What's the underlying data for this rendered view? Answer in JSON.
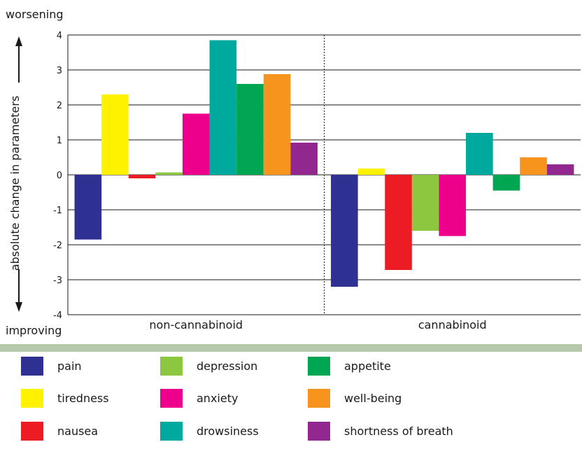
{
  "chart_data": {
    "type": "bar",
    "title": "",
    "ylabel": "absolute change in parameters",
    "ylabel_top": "worsening",
    "ylabel_bottom": "improving",
    "ylim": [
      -4,
      4
    ],
    "yticks": [
      -4,
      -3,
      -2,
      -1,
      0,
      1,
      2,
      3,
      4
    ],
    "grid": true,
    "legend_position": "bottom",
    "categories": [
      "non-cannabinoid",
      "cannabinoid"
    ],
    "series": [
      {
        "name": "pain",
        "color": "#2e3192",
        "values": [
          -1.85,
          -3.2
        ]
      },
      {
        "name": "tiredness",
        "color": "#fff200",
        "values": [
          2.3,
          0.18
        ]
      },
      {
        "name": "nausea",
        "color": "#ed1c24",
        "values": [
          -0.1,
          -2.72
        ]
      },
      {
        "name": "depression",
        "color": "#8dc63f",
        "values": [
          0.07,
          -1.6
        ]
      },
      {
        "name": "anxiety",
        "color": "#ec008c",
        "values": [
          1.75,
          -1.75
        ]
      },
      {
        "name": "drowsiness",
        "color": "#00a99d",
        "values": [
          3.85,
          1.2
        ]
      },
      {
        "name": "appetite",
        "color": "#00a651",
        "values": [
          2.6,
          -0.45
        ]
      },
      {
        "name": "well-being",
        "color": "#f7941d",
        "values": [
          2.88,
          0.5
        ]
      },
      {
        "name": "shortness of breath",
        "color": "#92278f",
        "values": [
          0.92,
          0.3
        ]
      }
    ]
  }
}
